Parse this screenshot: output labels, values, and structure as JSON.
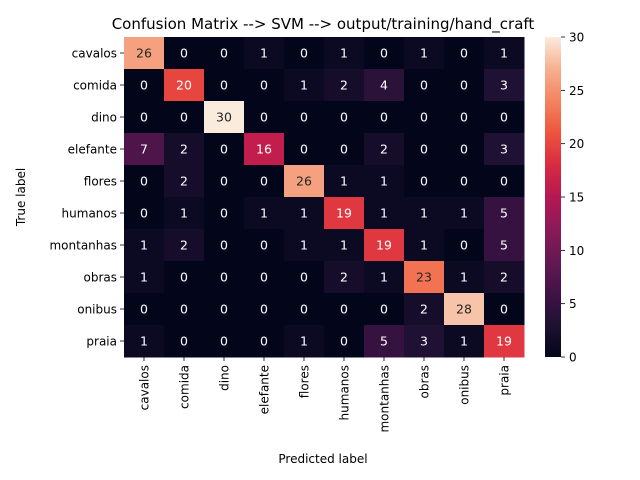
{
  "chart_data": {
    "type": "heatmap",
    "title": "Confusion Matrix --> SVM --> output/training/hand_craft",
    "xlabel": "Predicted label",
    "ylabel": "True label",
    "x_categories": [
      "cavalos",
      "comida",
      "dino",
      "elefante",
      "flores",
      "humanos",
      "montanhas",
      "obras",
      "onibus",
      "praia"
    ],
    "y_categories": [
      "cavalos",
      "comida",
      "dino",
      "elefante",
      "flores",
      "humanos",
      "montanhas",
      "obras",
      "onibus",
      "praia"
    ],
    "values": [
      [
        26,
        0,
        0,
        1,
        0,
        1,
        0,
        1,
        0,
        1
      ],
      [
        0,
        20,
        0,
        0,
        1,
        2,
        4,
        0,
        0,
        3
      ],
      [
        0,
        0,
        30,
        0,
        0,
        0,
        0,
        0,
        0,
        0
      ],
      [
        7,
        2,
        0,
        16,
        0,
        0,
        2,
        0,
        0,
        3
      ],
      [
        0,
        2,
        0,
        0,
        26,
        1,
        1,
        0,
        0,
        0
      ],
      [
        0,
        1,
        0,
        1,
        1,
        19,
        1,
        1,
        1,
        5
      ],
      [
        1,
        2,
        0,
        0,
        1,
        1,
        19,
        1,
        0,
        5
      ],
      [
        1,
        0,
        0,
        0,
        0,
        2,
        1,
        23,
        1,
        2
      ],
      [
        0,
        0,
        0,
        0,
        0,
        0,
        0,
        2,
        28,
        0
      ],
      [
        1,
        0,
        0,
        0,
        1,
        0,
        5,
        3,
        1,
        19
      ]
    ],
    "colorbar": {
      "min": 0,
      "max": 30,
      "ticks": [
        0,
        5,
        10,
        15,
        20,
        25,
        30
      ]
    },
    "colormap": "rocket"
  }
}
